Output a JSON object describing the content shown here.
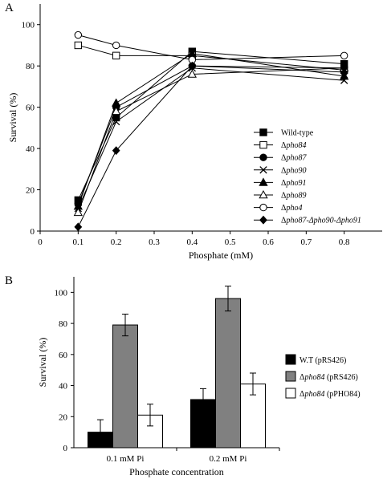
{
  "figure": {
    "panel_a_label": "A",
    "panel_b_label": "B"
  },
  "chart_data": [
    {
      "type": "line",
      "panel": "A",
      "xlabel": "Phosphate (mM)",
      "ylabel": "Survival (%)",
      "xlim": [
        0,
        0.9
      ],
      "ylim": [
        0,
        110
      ],
      "xticks": [
        "0",
        "0.1",
        "0.2",
        "0.3",
        "0.4",
        "0.5",
        "0.6",
        "0.7",
        "0.8"
      ],
      "yticks": [
        "0",
        "20",
        "40",
        "60",
        "80",
        "100"
      ],
      "x": [
        0.1,
        0.2,
        0.4,
        0.8
      ],
      "legend_position": "right",
      "series": [
        {
          "name": "Wild-type",
          "prefix": "",
          "italic": "",
          "marker": "square-filled",
          "values": [
            15,
            55,
            87,
            81
          ]
        },
        {
          "name": "Δpho84",
          "prefix": "Δ",
          "italic": "pho84",
          "marker": "square-open",
          "values": [
            90,
            85,
            85,
            78
          ]
        },
        {
          "name": "Δpho87",
          "prefix": "Δ",
          "italic": "pho87",
          "marker": "circle-filled",
          "values": [
            13,
            60,
            80,
            77
          ]
        },
        {
          "name": "Δpho90",
          "prefix": "Δ",
          "italic": "pho90",
          "marker": "x",
          "values": [
            11,
            53,
            79,
            73
          ]
        },
        {
          "name": "Δpho91",
          "prefix": "Δ",
          "italic": "pho91",
          "marker": "triangle-filled",
          "values": [
            12,
            62,
            86,
            75
          ]
        },
        {
          "name": "Δpho89",
          "prefix": "Δ",
          "italic": "pho89",
          "marker": "triangle-open",
          "values": [
            9,
            58,
            76,
            79
          ]
        },
        {
          "name": "Δpho4",
          "prefix": "Δ",
          "italic": "pho4",
          "marker": "circle-open",
          "values": [
            95,
            90,
            83,
            85
          ]
        },
        {
          "name": "Δpho87-Δpho90-Δpho91",
          "prefix": "Δ",
          "italic": "pho87-Δpho90-Δpho91",
          "marker": "diamond-filled",
          "values": [
            2,
            39,
            80,
            79
          ]
        }
      ]
    },
    {
      "type": "bar",
      "panel": "B",
      "xlabel": "Phosphate concentration",
      "ylabel": "Survival (%)",
      "ylim": [
        0,
        110
      ],
      "yticks": [
        "0",
        "20",
        "40",
        "60",
        "80",
        "100"
      ],
      "categories": [
        "0.1 mM Pi",
        "0.2 mM Pi"
      ],
      "legend_position": "right",
      "series": [
        {
          "name": "W.T (pRS426)",
          "prefix": "W.T",
          "italic": "",
          "suffix": " (pRS426)",
          "fill": "#000000",
          "values": [
            10,
            31
          ],
          "errors": [
            8,
            7
          ]
        },
        {
          "name": "Δpho84 (pRS426)",
          "prefix": "Δ",
          "italic": "pho84",
          "suffix": " (pRS426)",
          "fill": "#808080",
          "values": [
            79,
            96
          ],
          "errors": [
            7,
            8
          ]
        },
        {
          "name": "Δpho84 (pPHO84)",
          "prefix": "Δ",
          "italic": "pho84",
          "suffix": " (pPHO84)",
          "fill": "#ffffff",
          "values": [
            21,
            41
          ],
          "errors": [
            7,
            7
          ]
        }
      ]
    }
  ]
}
